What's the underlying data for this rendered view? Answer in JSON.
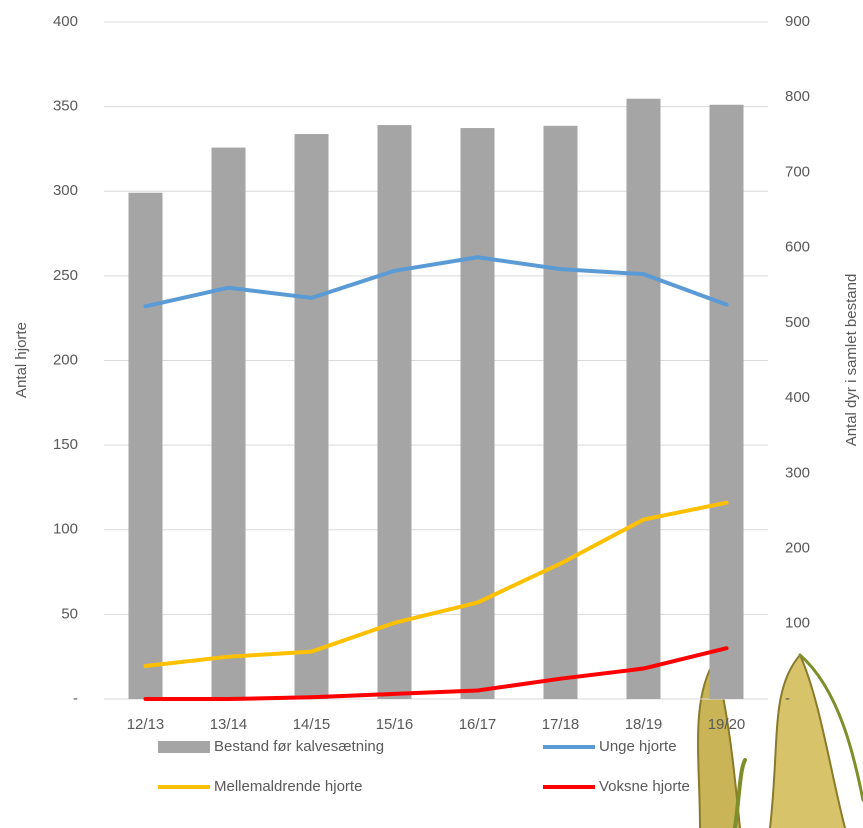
{
  "chart_data": {
    "type": "bar-line",
    "categories": [
      "12/13",
      "13/14",
      "14/15",
      "15/16",
      "16/17",
      "17/18",
      "18/19",
      "19/20"
    ],
    "ylabel": "Antal hjorte",
    "y2label": "Antal dyr i samlet bestand",
    "ylim": [
      0,
      400
    ],
    "yticks": [
      {
        "value": 0,
        "label": "-"
      },
      50,
      100,
      150,
      200,
      250,
      300,
      350,
      400
    ],
    "y2lim": [
      0,
      900
    ],
    "y2ticks": [
      {
        "value": 0,
        "label": "-"
      },
      100,
      200,
      300,
      400,
      500,
      600,
      700,
      800,
      900
    ],
    "grid": true,
    "legend": "bottom",
    "series": [
      {
        "name": "Bestand før kalvesætning",
        "kind": "bar",
        "axis": "y2",
        "color": "#a5a5a5",
        "values": [
          673,
          733,
          751,
          763,
          759,
          762,
          798,
          790
        ]
      },
      {
        "name": "Unge hjorte",
        "kind": "line",
        "color": "#5b9bd5",
        "values": [
          232,
          243,
          237,
          253,
          261,
          254,
          251,
          233
        ]
      },
      {
        "name": "Mellemaldrende hjorte",
        "kind": "line",
        "color": "#ffc000",
        "values": [
          19.5,
          25,
          28,
          45,
          57,
          80,
          106,
          116
        ]
      },
      {
        "name": "Voksne hjorte",
        "kind": "line",
        "color": "#ff0000",
        "values": [
          0,
          0,
          1,
          3,
          5,
          12,
          18,
          30
        ]
      }
    ]
  }
}
